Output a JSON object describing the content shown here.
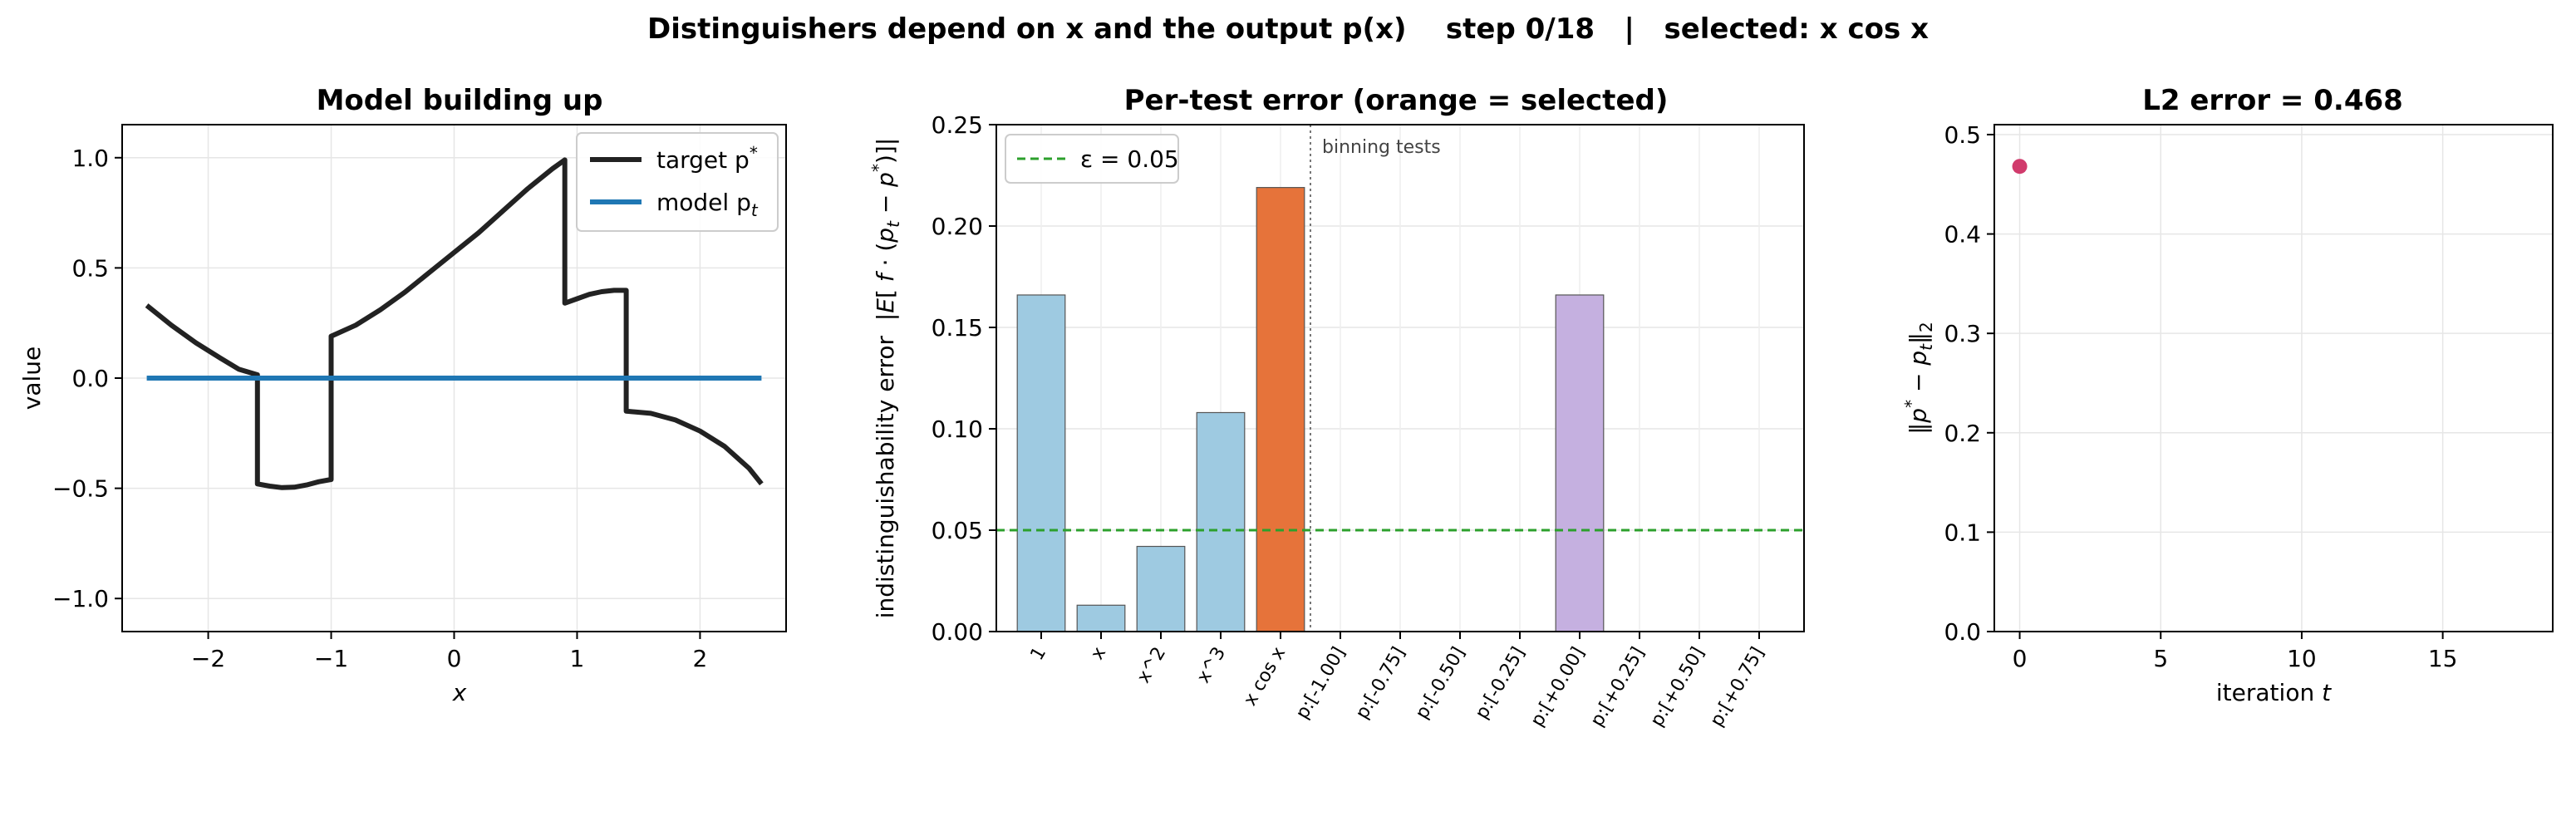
{
  "suptitle": "Distinguishers depend on x and the output p(x)    step 0/18   |   selected: x cos x",
  "chart_data": [
    {
      "type": "line",
      "title": "Model building up",
      "xlabel": "x",
      "ylabel": "value",
      "xlim": [
        -2.7,
        2.7
      ],
      "ylim": [
        -1.15,
        1.15
      ],
      "xticks": [
        -2,
        -1,
        0,
        1,
        2
      ],
      "yticks": [
        -1.0,
        -0.5,
        0.0,
        0.5,
        1.0
      ],
      "xtick_labels": [
        "−2",
        "−1",
        "0",
        "1",
        "2"
      ],
      "ytick_labels": [
        "−1.0",
        "−0.5",
        "0.0",
        "0.5",
        "1.0"
      ],
      "grid": true,
      "legend": "top-right",
      "series": [
        {
          "name": "target p*",
          "color": "#222222",
          "segments": [
            [
              [
                -2.5,
                0.33
              ],
              [
                -2.3,
                0.24
              ],
              [
                -2.1,
                0.16
              ],
              [
                -1.9,
                0.09
              ],
              [
                -1.75,
                0.04
              ],
              [
                -1.6,
                0.015
              ]
            ],
            [
              [
                -1.6,
                -0.48
              ],
              [
                -1.5,
                -0.49
              ],
              [
                -1.4,
                -0.497
              ],
              [
                -1.3,
                -0.495
              ],
              [
                -1.2,
                -0.485
              ],
              [
                -1.1,
                -0.47
              ],
              [
                -1.0,
                -0.46
              ]
            ],
            [
              [
                -1.0,
                0.19
              ],
              [
                -0.8,
                0.24
              ],
              [
                -0.6,
                0.31
              ],
              [
                -0.4,
                0.39
              ],
              [
                -0.2,
                0.48
              ],
              [
                0.0,
                0.57
              ],
              [
                0.2,
                0.66
              ],
              [
                0.4,
                0.76
              ],
              [
                0.6,
                0.86
              ],
              [
                0.8,
                0.95
              ],
              [
                0.9,
                0.99
              ]
            ],
            [
              [
                0.9,
                0.34
              ],
              [
                1.0,
                0.36
              ],
              [
                1.1,
                0.38
              ],
              [
                1.2,
                0.392
              ],
              [
                1.3,
                0.398
              ],
              [
                1.4,
                0.398
              ]
            ],
            [
              [
                1.4,
                -0.15
              ],
              [
                1.6,
                -0.16
              ],
              [
                1.8,
                -0.19
              ],
              [
                2.0,
                -0.24
              ],
              [
                2.2,
                -0.31
              ],
              [
                2.4,
                -0.41
              ],
              [
                2.5,
                -0.48
              ]
            ]
          ]
        },
        {
          "name": "model p_t",
          "color": "#1f77b4",
          "segments": [
            [
              [
                -2.5,
                0.0
              ],
              [
                2.5,
                0.0
              ]
            ]
          ]
        }
      ],
      "legend_labels": [
        "target p",
        "model p"
      ],
      "legend_sup": [
        "*",
        ""
      ],
      "legend_sub": [
        "",
        "t"
      ]
    },
    {
      "type": "bar",
      "title": "Per-test error (orange = selected)",
      "ylabel": "indistinguishability error  |E[ f · (p − p )]|",
      "ylim": [
        0,
        0.25
      ],
      "yticks": [
        0.0,
        0.05,
        0.1,
        0.15,
        0.2,
        0.25
      ],
      "ytick_labels": [
        "0.00",
        "0.05",
        "0.10",
        "0.15",
        "0.20",
        "0.25"
      ],
      "grid": true,
      "categories": [
        "1",
        "x",
        "x^2",
        "x^3",
        "x cos x",
        "p:[-1.00]",
        "p:[-0.75]",
        "p:[-0.50]",
        "p:[-0.25]",
        "p:[+0.00]",
        "p:[+0.25]",
        "p:[+0.50]",
        "p:[+0.75]"
      ],
      "values": [
        0.166,
        0.013,
        0.042,
        0.108,
        0.219,
        0.0,
        0.0,
        0.0,
        0.0,
        0.166,
        0.0,
        0.0,
        0.0
      ],
      "bar_colors": [
        "#9ecae1",
        "#9ecae1",
        "#9ecae1",
        "#9ecae1",
        "#e6733a",
        "#c5b0e0",
        "#c5b0e0",
        "#c5b0e0",
        "#c5b0e0",
        "#c5b0e0",
        "#c5b0e0",
        "#c5b0e0",
        "#c5b0e0"
      ],
      "threshold": {
        "value": 0.05,
        "label": "ε = 0.05",
        "color": "#2ca02c"
      },
      "divider": {
        "after_index": 4,
        "label": "binning tests"
      },
      "legend": "top-left"
    },
    {
      "type": "scatter",
      "title": "L2 error = 0.468",
      "xlabel": "iteration t",
      "ylabel": "‖p − p ‖",
      "xlim": [
        -0.9,
        18.9
      ],
      "ylim": [
        0,
        0.51
      ],
      "xticks": [
        0,
        5,
        10,
        15
      ],
      "yticks": [
        0.0,
        0.1,
        0.2,
        0.3,
        0.4,
        0.5
      ],
      "xtick_labels": [
        "0",
        "5",
        "10",
        "15"
      ],
      "ytick_labels": [
        "0.0",
        "0.1",
        "0.2",
        "0.3",
        "0.4",
        "0.5"
      ],
      "grid": true,
      "points": [
        {
          "x": 0,
          "y": 0.468
        }
      ],
      "point_color": "#d13b6c"
    }
  ]
}
